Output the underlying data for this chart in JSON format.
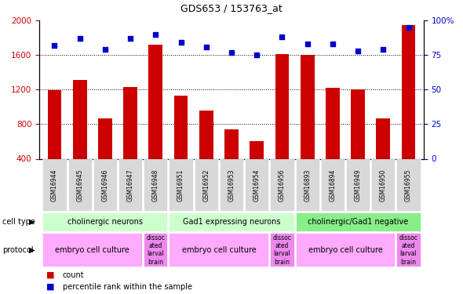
{
  "title": "GDS653 / 153763_at",
  "samples": [
    "GSM16944",
    "GSM16945",
    "GSM16946",
    "GSM16947",
    "GSM16948",
    "GSM16951",
    "GSM16952",
    "GSM16953",
    "GSM16954",
    "GSM16956",
    "GSM16893",
    "GSM16894",
    "GSM16949",
    "GSM16950",
    "GSM16955"
  ],
  "counts": [
    1190,
    1310,
    870,
    1230,
    1720,
    1130,
    960,
    740,
    600,
    1610,
    1600,
    1220,
    1200,
    870,
    1950
  ],
  "percentiles": [
    82,
    87,
    79,
    87,
    90,
    84,
    81,
    77,
    75,
    88,
    83,
    83,
    78,
    79,
    95
  ],
  "ylim_left": [
    400,
    2000
  ],
  "ylim_right": [
    0,
    100
  ],
  "yticks_left": [
    400,
    800,
    1200,
    1600,
    2000
  ],
  "yticks_right": [
    0,
    25,
    50,
    75,
    100
  ],
  "bar_color": "#cc0000",
  "dot_color": "#0000cc",
  "grid_lines": [
    800,
    1200,
    1600
  ],
  "cell_type_data": [
    {
      "label": "cholinergic neurons",
      "start": 0,
      "end": 5,
      "color": "#ccffcc"
    },
    {
      "label": "Gad1 expressing neurons",
      "start": 5,
      "end": 10,
      "color": "#ccffcc"
    },
    {
      "label": "cholinergic/Gad1 negative",
      "start": 10,
      "end": 15,
      "color": "#88ee88"
    }
  ],
  "proto_data": [
    {
      "label": "embryo cell culture",
      "start": 0,
      "end": 4,
      "color": "#ffaaff"
    },
    {
      "label": "dissoc\nated\nlarval\nbrain",
      "start": 4,
      "end": 5,
      "color": "#ee88ee"
    },
    {
      "label": "embryo cell culture",
      "start": 5,
      "end": 9,
      "color": "#ffaaff"
    },
    {
      "label": "dissoc\nated\nlarval\nbrain",
      "start": 9,
      "end": 10,
      "color": "#ee88ee"
    },
    {
      "label": "embryo cell culture",
      "start": 10,
      "end": 14,
      "color": "#ffaaff"
    },
    {
      "label": "dissoc\nated\nlarval\nbrain",
      "start": 14,
      "end": 15,
      "color": "#ee88ee"
    }
  ],
  "bar_color_legend": "#cc0000",
  "dot_color_legend": "#0000cc",
  "bg_color": "#ffffff",
  "left_tick_color": "#cc0000",
  "right_tick_color": "#0000cc"
}
